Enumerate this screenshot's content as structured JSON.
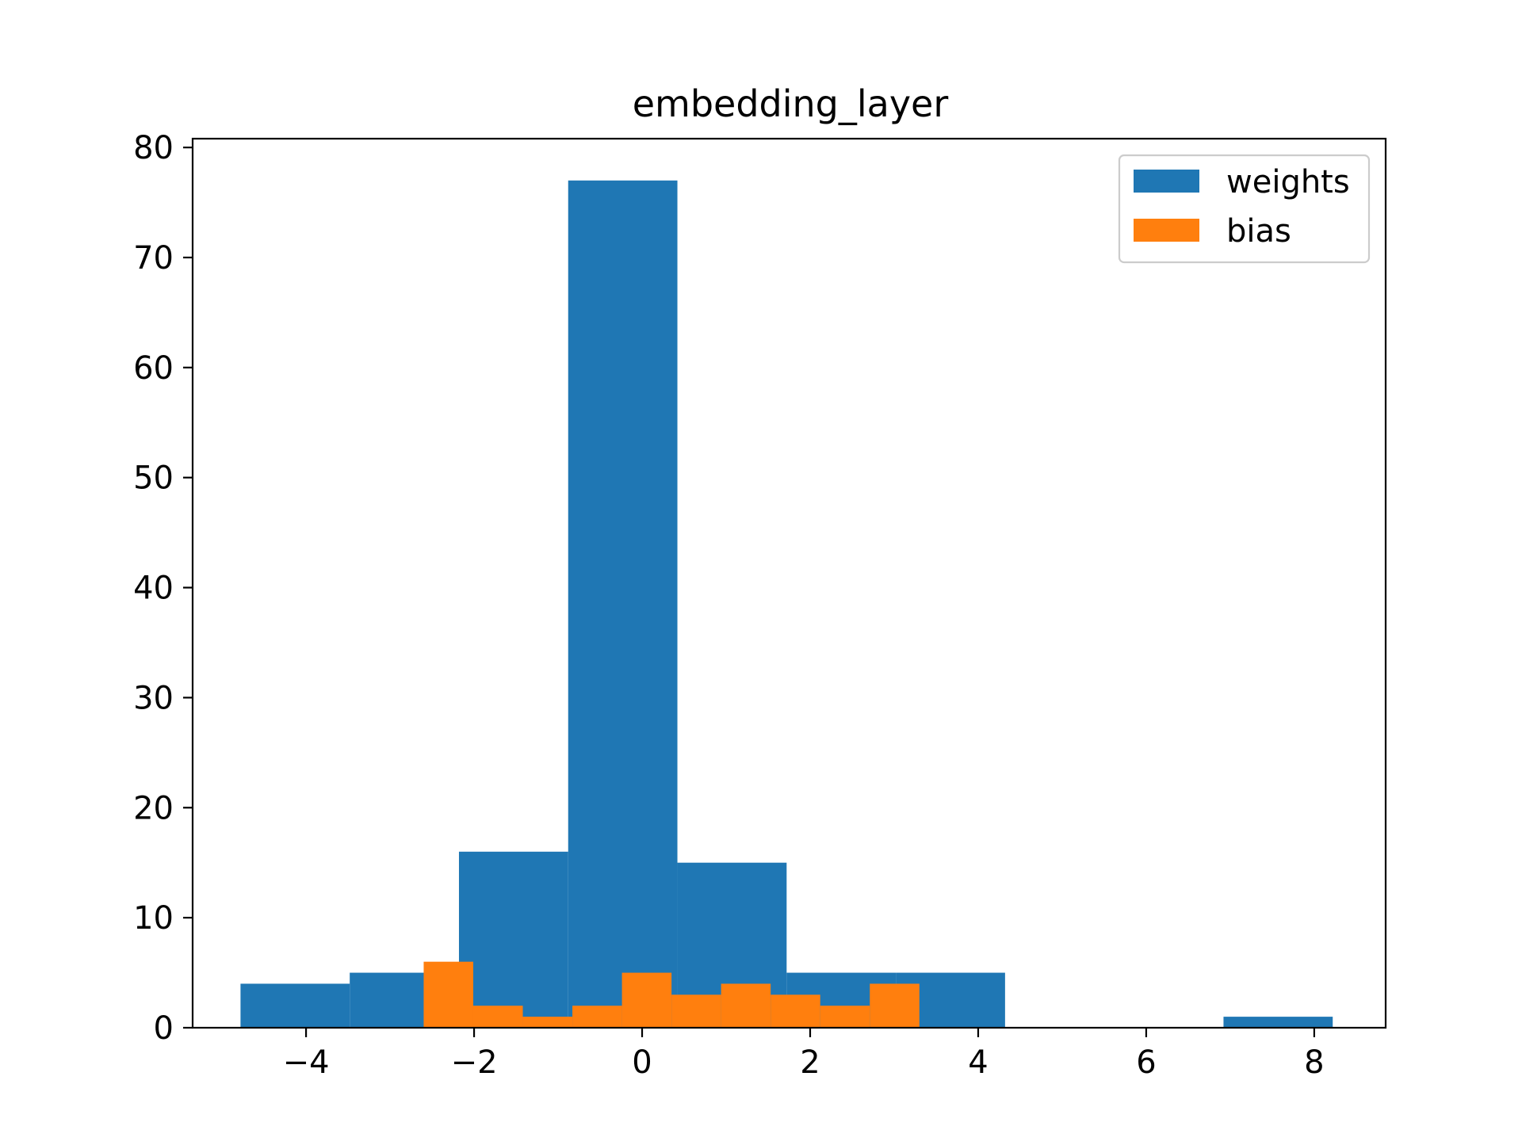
{
  "chart_data": {
    "type": "bar",
    "title": "embedding_layer",
    "xlabel": "",
    "ylabel": "",
    "xlim": [
      -5.35,
      8.85
    ],
    "ylim": [
      0,
      80.8
    ],
    "xticks": [
      -4,
      -2,
      0,
      2,
      4,
      6,
      8
    ],
    "xtick_labels": [
      "−4",
      "−2",
      "0",
      "2",
      "4",
      "6",
      "8"
    ],
    "yticks": [
      0,
      10,
      20,
      30,
      40,
      50,
      60,
      70,
      80
    ],
    "ytick_labels": [
      "0",
      "10",
      "20",
      "30",
      "40",
      "50",
      "60",
      "70",
      "80"
    ],
    "grid": false,
    "legend_position": "top-right",
    "series": [
      {
        "name": "weights",
        "color": "#1f77b4",
        "bin_edges": [
          -4.78,
          -3.48,
          -2.18,
          -0.88,
          0.42,
          1.72,
          3.02,
          4.32,
          5.62,
          6.92,
          8.22
        ],
        "counts": [
          4,
          5,
          16,
          77,
          15,
          5,
          5,
          0,
          0,
          1
        ]
      },
      {
        "name": "bias",
        "color": "#ff7f0e",
        "bin_edges": [
          -2.6,
          -2.01,
          -1.42,
          -0.83,
          -0.24,
          0.35,
          0.94,
          1.53,
          2.12,
          2.71,
          3.3
        ],
        "counts": [
          6,
          2,
          1,
          2,
          5,
          3,
          4,
          3,
          2,
          4
        ]
      }
    ]
  }
}
